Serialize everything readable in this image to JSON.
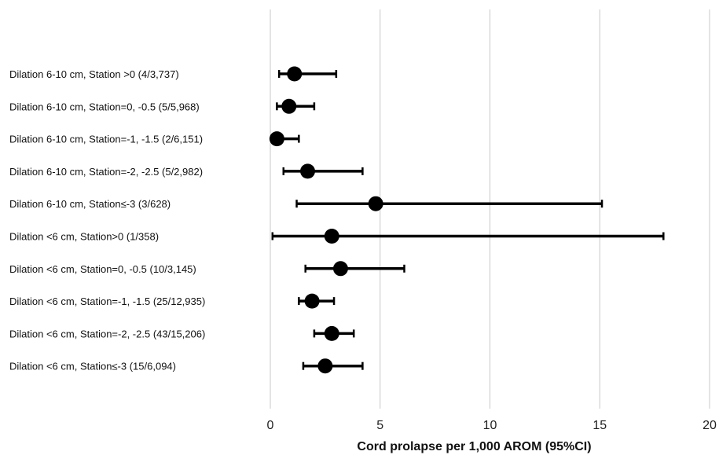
{
  "chart_data": {
    "type": "scatter",
    "subtype": "forest-plot",
    "title": "",
    "xlabel": "Cord prolapse per 1,000 AROM (95%CI)",
    "ylabel": "",
    "xlim": [
      0,
      20
    ],
    "xticks": [
      0,
      5,
      10,
      15,
      20
    ],
    "grid": "vertical",
    "legend": "none",
    "point_color": "#000000",
    "grid_color": "#c8c8c8",
    "rows": [
      {
        "label": "Dilation 6-10 cm, Station >0 (4/3,737)",
        "estimate": 1.1,
        "lower": 0.4,
        "upper": 3.0
      },
      {
        "label": "Dilation 6-10 cm, Station=0, -0.5 (5/5,968)",
        "estimate": 0.85,
        "lower": 0.3,
        "upper": 2.0
      },
      {
        "label": "Dilation 6-10 cm, Station=-1, -1.5 (2/6,151)",
        "estimate": 0.3,
        "lower": 0.1,
        "upper": 1.3
      },
      {
        "label": "Dilation 6-10 cm, Station=-2, -2.5 (5/2,982)",
        "estimate": 1.7,
        "lower": 0.6,
        "upper": 4.2
      },
      {
        "label": "Dilation 6-10 cm, Station≤-3 (3/628)",
        "estimate": 4.8,
        "lower": 1.2,
        "upper": 15.1
      },
      {
        "label": "Dilation <6 cm, Station>0 (1/358)",
        "estimate": 2.8,
        "lower": 0.1,
        "upper": 17.9
      },
      {
        "label": "Dilation <6 cm, Station=0, -0.5 (10/3,145)",
        "estimate": 3.2,
        "lower": 1.6,
        "upper": 6.1
      },
      {
        "label": "Dilation <6 cm, Station=-1, -1.5 (25/12,935)",
        "estimate": 1.9,
        "lower": 1.3,
        "upper": 2.9
      },
      {
        "label": "Dilation <6 cm, Station=-2, -2.5 (43/15,206)",
        "estimate": 2.8,
        "lower": 2.0,
        "upper": 3.8
      },
      {
        "label": "Dilation <6 cm, Station≤-3 (15/6,094)",
        "estimate": 2.5,
        "lower": 1.5,
        "upper": 4.2
      }
    ]
  }
}
